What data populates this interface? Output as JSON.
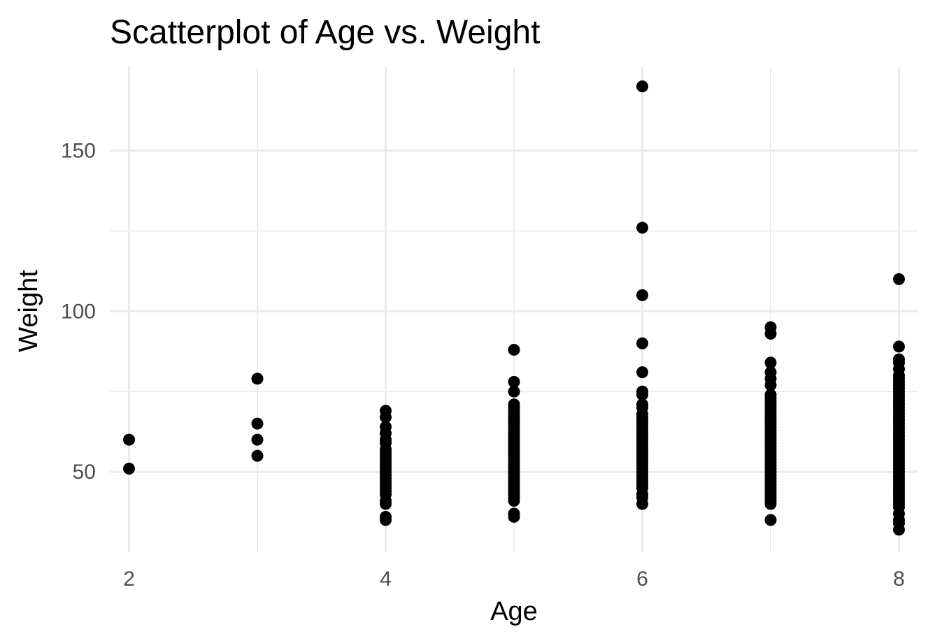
{
  "chart_data": {
    "type": "scatter",
    "title": "Scatterplot of Age vs. Weight",
    "xlabel": "Age",
    "ylabel": "Weight",
    "xlim": [
      1.85,
      8.15
    ],
    "ylim": [
      25,
      176
    ],
    "x_ticks": [
      2,
      4,
      6,
      8
    ],
    "x_minor_ticks": [
      3,
      5,
      7
    ],
    "y_ticks": [
      50,
      100,
      150
    ],
    "y_minor_ticks": [
      75,
      125
    ],
    "grid": true,
    "marker_color": "#000000",
    "series": [
      {
        "points": [
          {
            "x": 2,
            "y": 60
          },
          {
            "x": 2,
            "y": 51
          },
          {
            "x": 3,
            "y": 79
          },
          {
            "x": 3,
            "y": 65
          },
          {
            "x": 3,
            "y": 60
          },
          {
            "x": 3,
            "y": 55
          },
          {
            "x": 4,
            "y": 69
          },
          {
            "x": 4,
            "y": 67
          },
          {
            "x": 4,
            "y": 64
          },
          {
            "x": 4,
            "y": 62
          },
          {
            "x": 4,
            "y": 60
          },
          {
            "x": 4,
            "y": 59
          },
          {
            "x": 4,
            "y": 57
          },
          {
            "x": 4,
            "y": 56
          },
          {
            "x": 4,
            "y": 55
          },
          {
            "x": 4,
            "y": 54
          },
          {
            "x": 4,
            "y": 53
          },
          {
            "x": 4,
            "y": 52
          },
          {
            "x": 4,
            "y": 51
          },
          {
            "x": 4,
            "y": 50
          },
          {
            "x": 4,
            "y": 49
          },
          {
            "x": 4,
            "y": 48
          },
          {
            "x": 4,
            "y": 47
          },
          {
            "x": 4,
            "y": 46
          },
          {
            "x": 4,
            "y": 45
          },
          {
            "x": 4,
            "y": 44
          },
          {
            "x": 4,
            "y": 43
          },
          {
            "x": 4,
            "y": 41
          },
          {
            "x": 4,
            "y": 40
          },
          {
            "x": 4,
            "y": 36
          },
          {
            "x": 4,
            "y": 35
          },
          {
            "x": 5,
            "y": 88
          },
          {
            "x": 5,
            "y": 78
          },
          {
            "x": 5,
            "y": 75
          },
          {
            "x": 5,
            "y": 71
          },
          {
            "x": 5,
            "y": 70
          },
          {
            "x": 5,
            "y": 69
          },
          {
            "x": 5,
            "y": 68
          },
          {
            "x": 5,
            "y": 67
          },
          {
            "x": 5,
            "y": 66
          },
          {
            "x": 5,
            "y": 65
          },
          {
            "x": 5,
            "y": 64
          },
          {
            "x": 5,
            "y": 63
          },
          {
            "x": 5,
            "y": 62
          },
          {
            "x": 5,
            "y": 61
          },
          {
            "x": 5,
            "y": 60
          },
          {
            "x": 5,
            "y": 59
          },
          {
            "x": 5,
            "y": 58
          },
          {
            "x": 5,
            "y": 57
          },
          {
            "x": 5,
            "y": 56
          },
          {
            "x": 5,
            "y": 55
          },
          {
            "x": 5,
            "y": 54
          },
          {
            "x": 5,
            "y": 53
          },
          {
            "x": 5,
            "y": 52
          },
          {
            "x": 5,
            "y": 51
          },
          {
            "x": 5,
            "y": 50
          },
          {
            "x": 5,
            "y": 49
          },
          {
            "x": 5,
            "y": 48
          },
          {
            "x": 5,
            "y": 47
          },
          {
            "x": 5,
            "y": 46
          },
          {
            "x": 5,
            "y": 45
          },
          {
            "x": 5,
            "y": 44
          },
          {
            "x": 5,
            "y": 43
          },
          {
            "x": 5,
            "y": 42
          },
          {
            "x": 5,
            "y": 41
          },
          {
            "x": 5,
            "y": 37
          },
          {
            "x": 5,
            "y": 36
          },
          {
            "x": 6,
            "y": 170
          },
          {
            "x": 6,
            "y": 126
          },
          {
            "x": 6,
            "y": 105
          },
          {
            "x": 6,
            "y": 90
          },
          {
            "x": 6,
            "y": 81
          },
          {
            "x": 6,
            "y": 75
          },
          {
            "x": 6,
            "y": 74
          },
          {
            "x": 6,
            "y": 71
          },
          {
            "x": 6,
            "y": 70
          },
          {
            "x": 6,
            "y": 68
          },
          {
            "x": 6,
            "y": 67
          },
          {
            "x": 6,
            "y": 66
          },
          {
            "x": 6,
            "y": 65
          },
          {
            "x": 6,
            "y": 64
          },
          {
            "x": 6,
            "y": 63
          },
          {
            "x": 6,
            "y": 62
          },
          {
            "x": 6,
            "y": 61
          },
          {
            "x": 6,
            "y": 60
          },
          {
            "x": 6,
            "y": 59
          },
          {
            "x": 6,
            "y": 58
          },
          {
            "x": 6,
            "y": 57
          },
          {
            "x": 6,
            "y": 56
          },
          {
            "x": 6,
            "y": 55
          },
          {
            "x": 6,
            "y": 54
          },
          {
            "x": 6,
            "y": 53
          },
          {
            "x": 6,
            "y": 52
          },
          {
            "x": 6,
            "y": 51
          },
          {
            "x": 6,
            "y": 50
          },
          {
            "x": 6,
            "y": 49
          },
          {
            "x": 6,
            "y": 48
          },
          {
            "x": 6,
            "y": 47
          },
          {
            "x": 6,
            "y": 46
          },
          {
            "x": 6,
            "y": 45
          },
          {
            "x": 6,
            "y": 43
          },
          {
            "x": 6,
            "y": 42
          },
          {
            "x": 6,
            "y": 40
          },
          {
            "x": 7,
            "y": 95
          },
          {
            "x": 7,
            "y": 93
          },
          {
            "x": 7,
            "y": 84
          },
          {
            "x": 7,
            "y": 81
          },
          {
            "x": 7,
            "y": 79
          },
          {
            "x": 7,
            "y": 77
          },
          {
            "x": 7,
            "y": 74
          },
          {
            "x": 7,
            "y": 73
          },
          {
            "x": 7,
            "y": 72
          },
          {
            "x": 7,
            "y": 71
          },
          {
            "x": 7,
            "y": 70
          },
          {
            "x": 7,
            "y": 69
          },
          {
            "x": 7,
            "y": 68
          },
          {
            "x": 7,
            "y": 67
          },
          {
            "x": 7,
            "y": 66
          },
          {
            "x": 7,
            "y": 65
          },
          {
            "x": 7,
            "y": 64
          },
          {
            "x": 7,
            "y": 63
          },
          {
            "x": 7,
            "y": 62
          },
          {
            "x": 7,
            "y": 61
          },
          {
            "x": 7,
            "y": 60
          },
          {
            "x": 7,
            "y": 59
          },
          {
            "x": 7,
            "y": 58
          },
          {
            "x": 7,
            "y": 57
          },
          {
            "x": 7,
            "y": 56
          },
          {
            "x": 7,
            "y": 55
          },
          {
            "x": 7,
            "y": 54
          },
          {
            "x": 7,
            "y": 53
          },
          {
            "x": 7,
            "y": 52
          },
          {
            "x": 7,
            "y": 51
          },
          {
            "x": 7,
            "y": 50
          },
          {
            "x": 7,
            "y": 49
          },
          {
            "x": 7,
            "y": 48
          },
          {
            "x": 7,
            "y": 47
          },
          {
            "x": 7,
            "y": 46
          },
          {
            "x": 7,
            "y": 45
          },
          {
            "x": 7,
            "y": 44
          },
          {
            "x": 7,
            "y": 43
          },
          {
            "x": 7,
            "y": 42
          },
          {
            "x": 7,
            "y": 41
          },
          {
            "x": 7,
            "y": 40
          },
          {
            "x": 7,
            "y": 35
          },
          {
            "x": 8,
            "y": 110
          },
          {
            "x": 8,
            "y": 89
          },
          {
            "x": 8,
            "y": 85
          },
          {
            "x": 8,
            "y": 84
          },
          {
            "x": 8,
            "y": 82
          },
          {
            "x": 8,
            "y": 80
          },
          {
            "x": 8,
            "y": 79
          },
          {
            "x": 8,
            "y": 78
          },
          {
            "x": 8,
            "y": 77
          },
          {
            "x": 8,
            "y": 76
          },
          {
            "x": 8,
            "y": 75
          },
          {
            "x": 8,
            "y": 74
          },
          {
            "x": 8,
            "y": 73
          },
          {
            "x": 8,
            "y": 72
          },
          {
            "x": 8,
            "y": 71
          },
          {
            "x": 8,
            "y": 70
          },
          {
            "x": 8,
            "y": 69
          },
          {
            "x": 8,
            "y": 68
          },
          {
            "x": 8,
            "y": 67
          },
          {
            "x": 8,
            "y": 66
          },
          {
            "x": 8,
            "y": 65
          },
          {
            "x": 8,
            "y": 64
          },
          {
            "x": 8,
            "y": 63
          },
          {
            "x": 8,
            "y": 62
          },
          {
            "x": 8,
            "y": 61
          },
          {
            "x": 8,
            "y": 60
          },
          {
            "x": 8,
            "y": 59
          },
          {
            "x": 8,
            "y": 58
          },
          {
            "x": 8,
            "y": 57
          },
          {
            "x": 8,
            "y": 56
          },
          {
            "x": 8,
            "y": 55
          },
          {
            "x": 8,
            "y": 54
          },
          {
            "x": 8,
            "y": 53
          },
          {
            "x": 8,
            "y": 52
          },
          {
            "x": 8,
            "y": 51
          },
          {
            "x": 8,
            "y": 50
          },
          {
            "x": 8,
            "y": 49
          },
          {
            "x": 8,
            "y": 48
          },
          {
            "x": 8,
            "y": 47
          },
          {
            "x": 8,
            "y": 46
          },
          {
            "x": 8,
            "y": 45
          },
          {
            "x": 8,
            "y": 44
          },
          {
            "x": 8,
            "y": 43
          },
          {
            "x": 8,
            "y": 42
          },
          {
            "x": 8,
            "y": 41
          },
          {
            "x": 8,
            "y": 40
          },
          {
            "x": 8,
            "y": 39
          },
          {
            "x": 8,
            "y": 37
          },
          {
            "x": 8,
            "y": 35
          },
          {
            "x": 8,
            "y": 34
          },
          {
            "x": 8,
            "y": 32
          }
        ]
      }
    ]
  }
}
